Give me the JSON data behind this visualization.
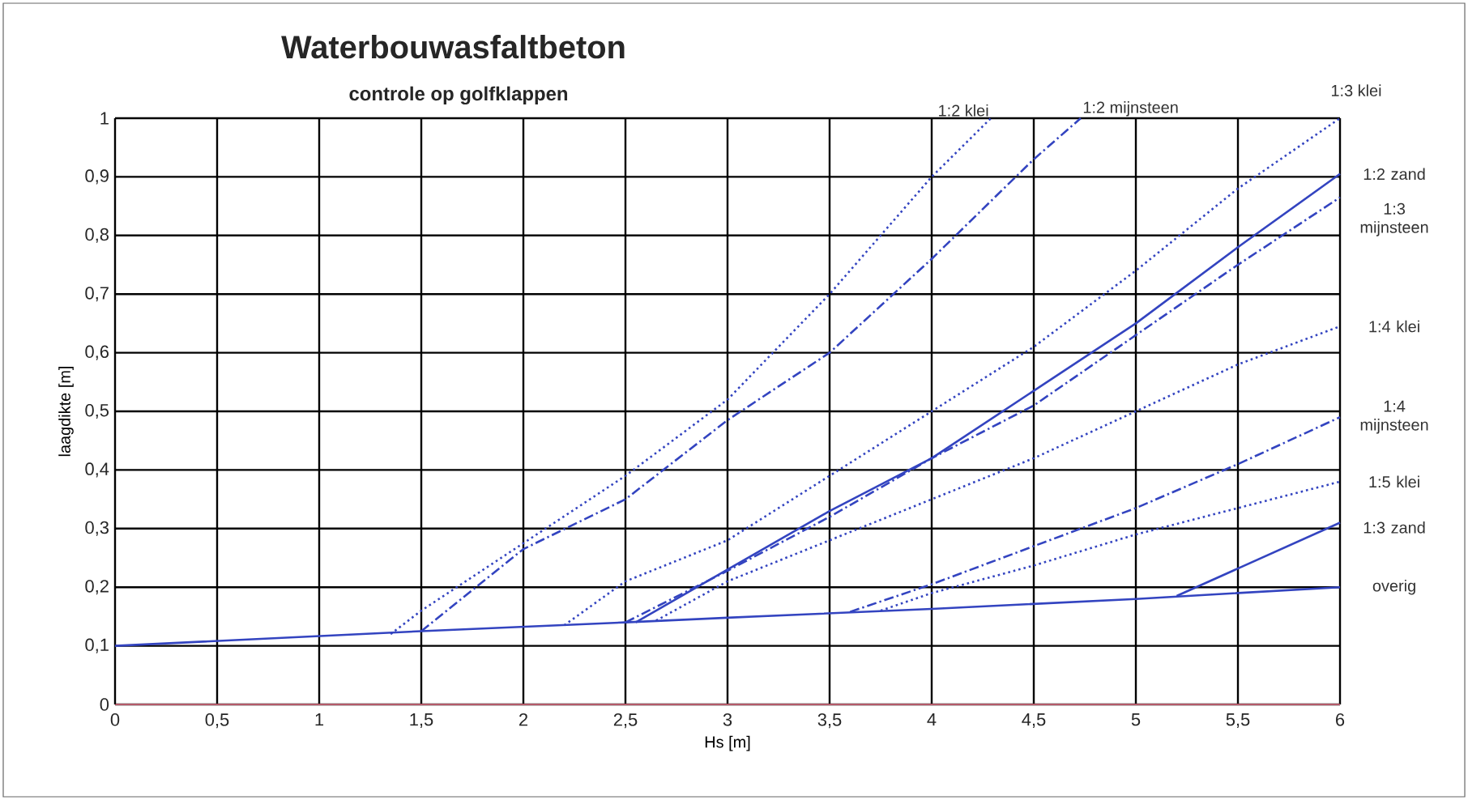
{
  "chart_data": {
    "type": "line",
    "title": "Waterbouwasfaltbeton",
    "subtitle": "controle op golfklappen",
    "xlabel": "Hs [m]",
    "ylabel": "laagdikte [m]",
    "xlim": [
      0,
      6
    ],
    "ylim": [
      0,
      1
    ],
    "xticks": [
      0,
      {
        "value": 0.5,
        "label": "0,5"
      },
      1,
      {
        "value": 1.5,
        "label": "1,5"
      },
      2,
      {
        "value": 2.5,
        "label": "2,5"
      },
      3,
      {
        "value": 3.5,
        "label": "3,5"
      },
      4,
      {
        "value": 4.5,
        "label": "4,5"
      },
      5,
      {
        "value": 5.5,
        "label": "5,5"
      },
      6
    ],
    "yticks": [
      0,
      {
        "value": 0.1,
        "label": "0,1"
      },
      {
        "value": 0.2,
        "label": "0,2"
      },
      {
        "value": 0.3,
        "label": "0,3"
      },
      {
        "value": 0.4,
        "label": "0,4"
      },
      {
        "value": 0.5,
        "label": "0,5"
      },
      {
        "value": 0.6,
        "label": "0,6"
      },
      {
        "value": 0.7,
        "label": "0,7"
      },
      {
        "value": 0.8,
        "label": "0,8"
      },
      {
        "value": 0.9,
        "label": "0,9"
      },
      1
    ],
    "grid": true,
    "series": [
      {
        "name": "overig",
        "color": "#3344c0",
        "line_style": "solid",
        "x": [
          0,
          1.5,
          2.5,
          3,
          4,
          5,
          6
        ],
        "values": [
          0.1,
          0.125,
          0.14,
          0.148,
          0.163,
          0.18,
          0.2
        ]
      },
      {
        "name": "1:2 klei",
        "color": "#3344c0",
        "line_style": "dotted",
        "x": [
          1.35,
          1.5,
          2.5,
          3,
          3.5,
          4,
          4.29
        ],
        "values": [
          0.12,
          0.16,
          0.39,
          0.52,
          0.7,
          0.9,
          1.0
        ]
      },
      {
        "name": "1:2 mijnsteen",
        "color": "#3344c0",
        "line_style": "dashdot",
        "x": [
          1.5,
          2,
          2.5,
          3,
          3.5,
          4,
          4.5,
          4.73
        ],
        "values": [
          0.125,
          0.265,
          0.35,
          0.485,
          0.6,
          0.76,
          0.93,
          1.0
        ]
      },
      {
        "name": "1:3 klei",
        "color": "#3344c0",
        "line_style": "dotted",
        "x": [
          2.2,
          2.5,
          3,
          3.5,
          4,
          4.5,
          5,
          5.5,
          6
        ],
        "values": [
          0.135,
          0.21,
          0.28,
          0.39,
          0.5,
          0.61,
          0.74,
          0.88,
          1.0
        ]
      },
      {
        "name": "1:2 zand",
        "color": "#3344c0",
        "line_style": "solid",
        "x": [
          2.55,
          3,
          3.5,
          4,
          4.5,
          5,
          5.5,
          6
        ],
        "values": [
          0.14,
          0.23,
          0.33,
          0.42,
          0.535,
          0.65,
          0.78,
          0.905
        ]
      },
      {
        "name": "1:3 mijnsteen",
        "color": "#3344c0",
        "line_style": "dashdot",
        "x": [
          2.5,
          3,
          3.5,
          4,
          4.5,
          5,
          5.5,
          6
        ],
        "values": [
          0.14,
          0.228,
          0.32,
          0.42,
          0.51,
          0.63,
          0.75,
          0.865
        ]
      },
      {
        "name": "1:4 klei",
        "color": "#3344c0",
        "line_style": "dotted",
        "x": [
          2.65,
          3,
          3.5,
          4,
          4.5,
          5,
          5.5,
          6
        ],
        "values": [
          0.143,
          0.21,
          0.28,
          0.35,
          0.42,
          0.5,
          0.58,
          0.645
        ]
      },
      {
        "name": "1:4 mijnsteen",
        "color": "#3344c0",
        "line_style": "dashdot",
        "x": [
          3.6,
          4,
          4.5,
          5,
          5.5,
          6
        ],
        "values": [
          0.158,
          0.205,
          0.27,
          0.335,
          0.41,
          0.49
        ]
      },
      {
        "name": "1:5 klei",
        "color": "#3344c0",
        "line_style": "dotted",
        "x": [
          3.75,
          4,
          4.5,
          5,
          5.5,
          6
        ],
        "values": [
          0.16,
          0.19,
          0.237,
          0.29,
          0.335,
          0.38
        ]
      },
      {
        "name": "1:3 zand",
        "color": "#3344c0",
        "line_style": "solid",
        "x": [
          5.2,
          6
        ],
        "values": [
          0.185,
          0.31
        ]
      }
    ]
  }
}
